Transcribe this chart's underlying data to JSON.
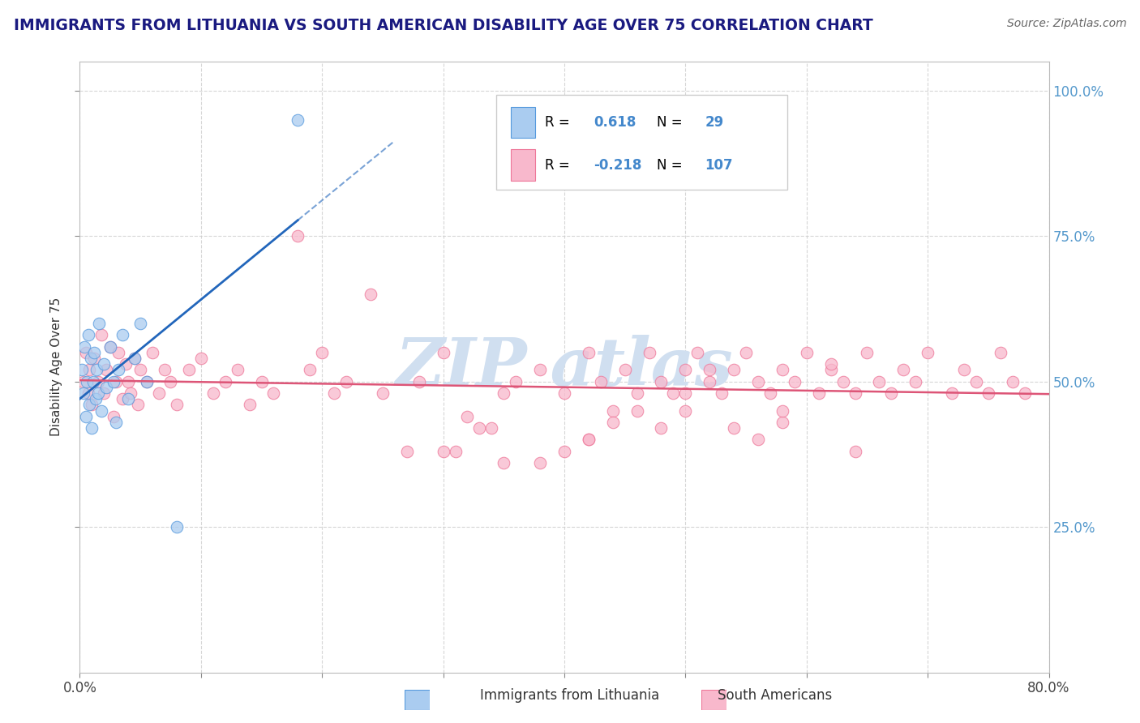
{
  "title": "IMMIGRANTS FROM LITHUANIA VS SOUTH AMERICAN DISABILITY AGE OVER 75 CORRELATION CHART",
  "source": "Source: ZipAtlas.com",
  "ylabel": "Disability Age Over 75",
  "xlim": [
    0.0,
    0.8
  ],
  "ylim": [
    0.0,
    1.05
  ],
  "x_tick_pos": [
    0.0,
    0.1,
    0.2,
    0.3,
    0.4,
    0.5,
    0.6,
    0.7,
    0.8
  ],
  "x_tick_labels": [
    "0.0%",
    "",
    "",
    "",
    "",
    "",
    "",
    "",
    "80.0%"
  ],
  "y_tick_positions": [
    0.25,
    0.5,
    0.75,
    1.0
  ],
  "y_tick_labels": [
    "25.0%",
    "50.0%",
    "75.0%",
    "100.0%"
  ],
  "lithuania_color": "#aaccf0",
  "southam_color": "#f8b8cc",
  "lithuania_edge_color": "#5599dd",
  "southam_edge_color": "#ee7799",
  "lithuania_line_color": "#2266bb",
  "southam_line_color": "#dd5577",
  "title_color": "#1a1a80",
  "right_label_color": "#5599cc",
  "grid_color": "#cccccc",
  "watermark_color": "#d0dff0",
  "legend_text_color": "#4488cc"
}
